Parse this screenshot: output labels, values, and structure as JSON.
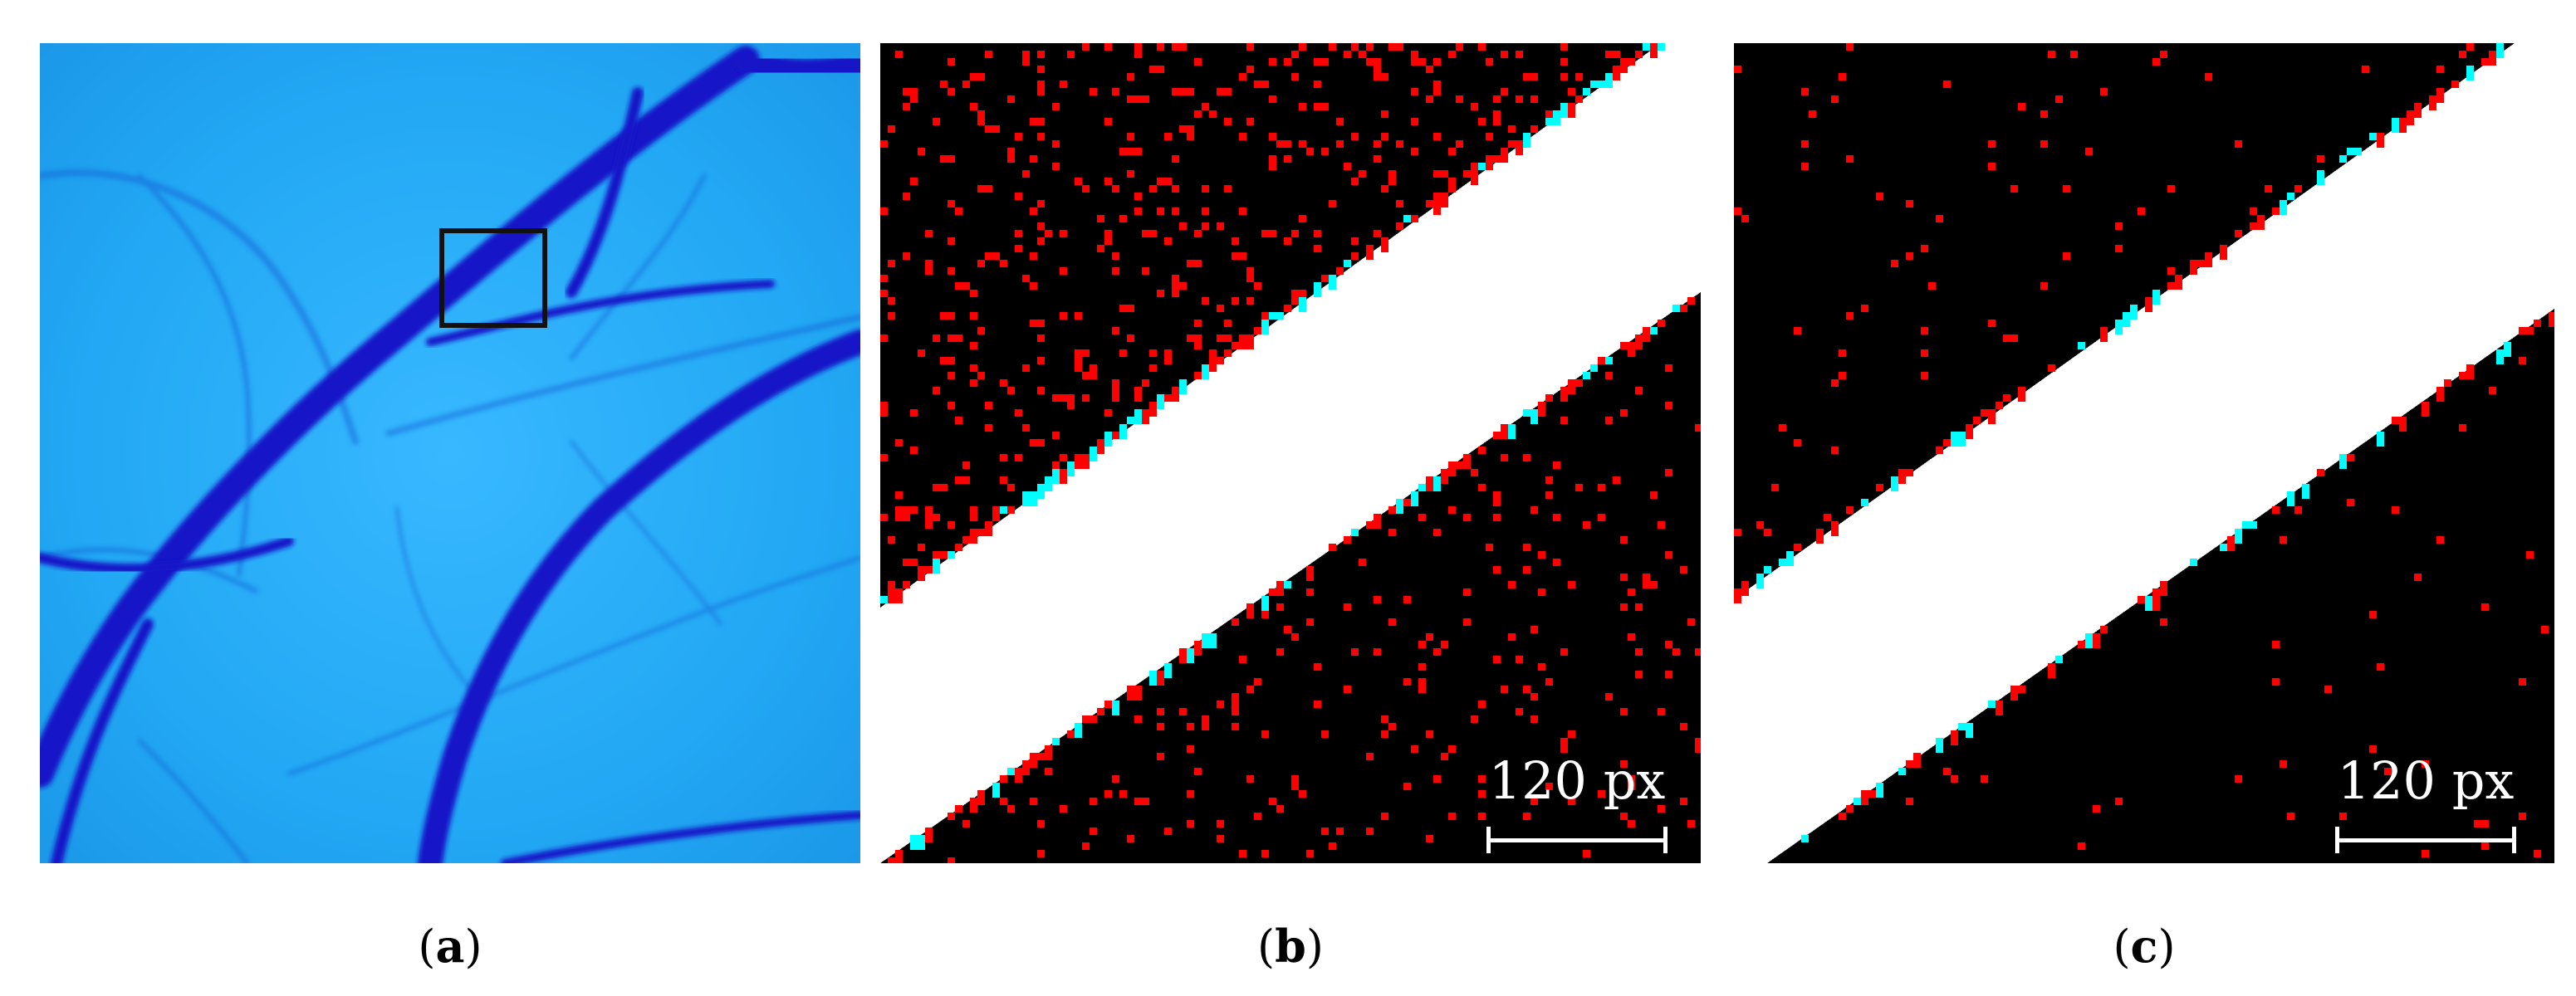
{
  "figure": {
    "panels": [
      {
        "id": "a",
        "caption_open": "(",
        "caption_letter": "a",
        "caption_close": ")"
      },
      {
        "id": "b",
        "caption_open": "(",
        "caption_letter": "b",
        "caption_close": ")",
        "scalebar_label": "120 px"
      },
      {
        "id": "c",
        "caption_open": "(",
        "caption_letter": "c",
        "caption_close": ")",
        "scalebar_label": "120 px"
      }
    ],
    "colors": {
      "tissue_background": "#1eaaf5",
      "vessel": "#1414c8",
      "mask_background": "#000000",
      "vessel_mask": "#ffffff",
      "false_positive": "#ff0000",
      "false_negative": "#00ffff",
      "roi_box": "#111111"
    }
  }
}
